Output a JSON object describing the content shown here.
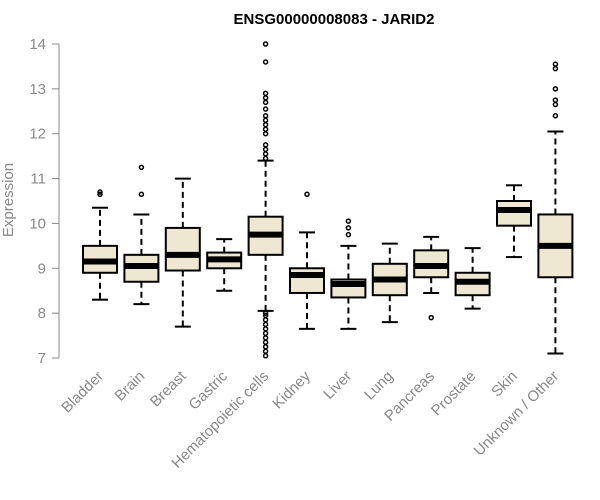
{
  "chart_data": {
    "type": "boxplot",
    "title": "ENSG00000008083 - JARID2",
    "xlabel": "",
    "ylabel": "Expression",
    "ylim": [
      7,
      14
    ],
    "yticks": [
      7,
      8,
      9,
      10,
      11,
      12,
      13,
      14
    ],
    "grid": false,
    "box_fill": "#EEE8D2",
    "categories": [
      "Bladder",
      "Brain",
      "Breast",
      "Gastric",
      "Hematopoietic cells",
      "Kidney",
      "Liver",
      "Lung",
      "Pancreas",
      "Prostate",
      "Skin",
      "Unknown / Other"
    ],
    "boxes": [
      {
        "name": "Bladder",
        "whisker_low": 8.3,
        "q1": 8.9,
        "median": 9.15,
        "q3": 9.5,
        "whisker_high": 10.35,
        "outliers": [
          10.65,
          10.7
        ]
      },
      {
        "name": "Brain",
        "whisker_low": 8.2,
        "q1": 8.7,
        "median": 9.05,
        "q3": 9.3,
        "whisker_high": 10.2,
        "outliers": [
          10.65,
          11.25
        ]
      },
      {
        "name": "Breast",
        "whisker_low": 7.7,
        "q1": 8.95,
        "median": 9.3,
        "q3": 9.9,
        "whisker_high": 11.0,
        "outliers": []
      },
      {
        "name": "Gastric",
        "whisker_low": 8.5,
        "q1": 9.0,
        "median": 9.2,
        "q3": 9.35,
        "whisker_high": 9.65,
        "outliers": []
      },
      {
        "name": "Hematopoietic cells",
        "whisker_low": 8.05,
        "q1": 9.3,
        "median": 9.75,
        "q3": 10.15,
        "whisker_high": 11.4,
        "outliers": [
          7.05,
          7.15,
          7.25,
          7.35,
          7.45,
          7.55,
          7.65,
          7.75,
          7.85,
          7.95,
          8.0,
          11.45,
          11.55,
          11.65,
          11.75,
          12.0,
          12.1,
          12.2,
          12.3,
          12.4,
          12.55,
          12.7,
          12.8,
          12.9,
          13.6,
          14.0
        ]
      },
      {
        "name": "Kidney",
        "whisker_low": 7.65,
        "q1": 8.45,
        "median": 8.85,
        "q3": 9.0,
        "whisker_high": 9.8,
        "outliers": [
          10.65
        ]
      },
      {
        "name": "Liver",
        "whisker_low": 7.65,
        "q1": 8.35,
        "median": 8.65,
        "q3": 8.75,
        "whisker_high": 9.5,
        "outliers": [
          9.75,
          9.9,
          10.05
        ]
      },
      {
        "name": "Lung",
        "whisker_low": 7.8,
        "q1": 8.4,
        "median": 8.75,
        "q3": 9.1,
        "whisker_high": 9.55,
        "outliers": []
      },
      {
        "name": "Pancreas",
        "whisker_low": 8.45,
        "q1": 8.8,
        "median": 9.05,
        "q3": 9.4,
        "whisker_high": 9.7,
        "outliers": [
          7.9
        ]
      },
      {
        "name": "Prostate",
        "whisker_low": 8.1,
        "q1": 8.4,
        "median": 8.7,
        "q3": 8.9,
        "whisker_high": 9.45,
        "outliers": []
      },
      {
        "name": "Skin",
        "whisker_low": 9.25,
        "q1": 9.95,
        "median": 10.3,
        "q3": 10.5,
        "whisker_high": 10.85,
        "outliers": []
      },
      {
        "name": "Unknown / Other",
        "whisker_low": 7.1,
        "q1": 8.8,
        "median": 9.5,
        "q3": 10.2,
        "whisker_high": 12.05,
        "outliers": [
          12.4,
          12.65,
          12.75,
          13.0,
          13.45,
          13.55
        ]
      }
    ]
  }
}
